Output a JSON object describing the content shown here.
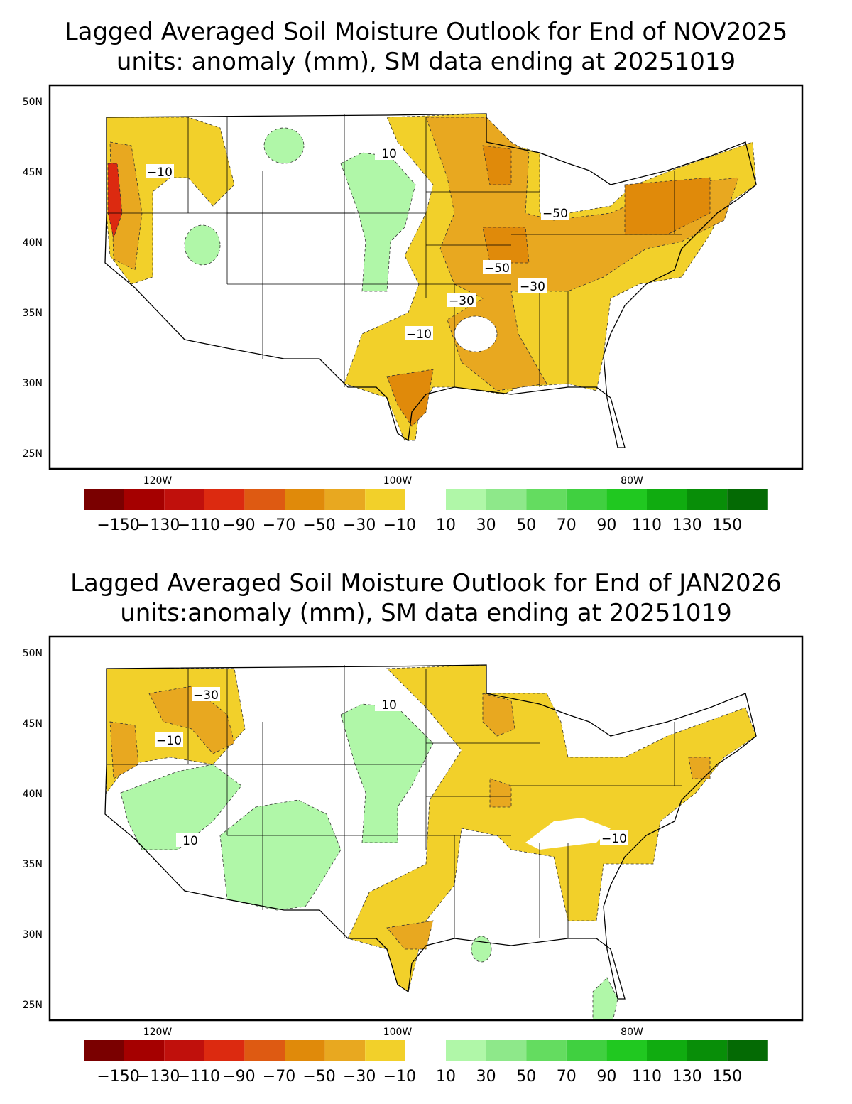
{
  "panels": [
    {
      "title": "Lagged Averaged Soil Moisture Outlook for End of NOV2025",
      "subtitle": "units: anomaly (mm), SM data ending at 20251019",
      "lat_labels": [
        "50N",
        "45N",
        "40N",
        "35N",
        "30N",
        "25N"
      ],
      "lon_labels": [
        "120W",
        "100W",
        "80W"
      ],
      "contour_labels": [
        "−10",
        "10",
        "−10",
        "−50",
        "−50",
        "−30",
        "−30"
      ],
      "colorbar": {
        "colors": [
          "#7a0000",
          "#a50000",
          "#c0100c",
          "#dc2a10",
          "#de5a12",
          "#e08a0a",
          "#e8a820",
          "#f2d02a",
          "#b0f7a8",
          "#8ee88a",
          "#64dc60",
          "#40d040",
          "#20c820",
          "#10ac10",
          "#088e08",
          "#046a04"
        ],
        "labels": [
          "−150",
          "−130",
          "−110",
          "−90",
          "−70",
          "−50",
          "−30",
          "−10",
          "10",
          "30",
          "50",
          "70",
          "90",
          "110",
          "130",
          "150"
        ]
      }
    },
    {
      "title": "Lagged Averaged Soil Moisture Outlook for End of JAN2026",
      "subtitle": "units:anomaly (mm), SM data ending at 20251019",
      "lat_labels": [
        "50N",
        "45N",
        "40N",
        "35N",
        "30N",
        "25N"
      ],
      "lon_labels": [
        "120W",
        "100W",
        "80W"
      ],
      "contour_labels": [
        "−10",
        "−30",
        "10",
        "10",
        "−10"
      ],
      "colorbar": {
        "colors": [
          "#7a0000",
          "#a50000",
          "#c0100c",
          "#dc2a10",
          "#de5a12",
          "#e08a0a",
          "#e8a820",
          "#f2d02a",
          "#b0f7a8",
          "#8ee88a",
          "#64dc60",
          "#40d040",
          "#20c820",
          "#10ac10",
          "#088e08",
          "#046a04"
        ],
        "labels": [
          "−150",
          "−130",
          "−110",
          "−90",
          "−70",
          "−50",
          "−30",
          "−10",
          "10",
          "30",
          "50",
          "70",
          "90",
          "110",
          "130",
          "150"
        ]
      }
    }
  ]
}
